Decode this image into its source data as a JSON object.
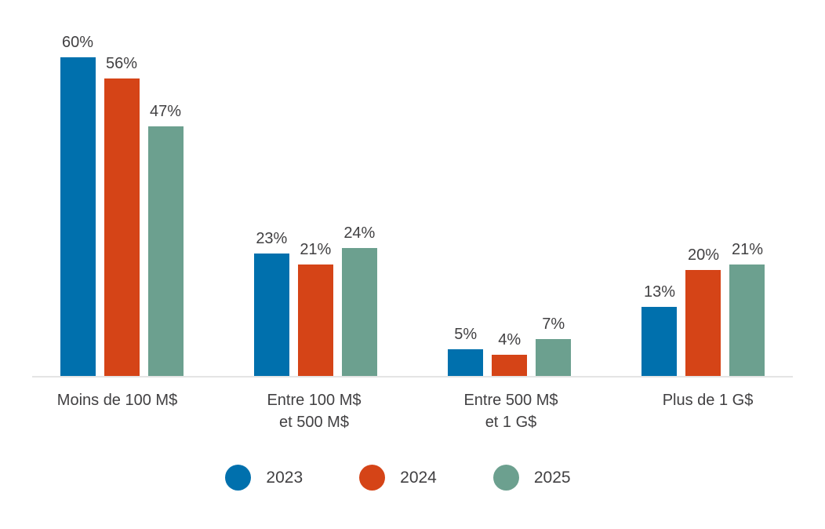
{
  "chart_data": {
    "type": "bar",
    "categories": [
      "Moins de 100 M$",
      "Entre 100 M$\net 500 M$",
      "Entre 500 M$\net 1 G$",
      "Plus de 1 G$"
    ],
    "series": [
      {
        "name": "2023",
        "color": "#0070AD",
        "values": [
          60,
          23,
          5,
          13
        ]
      },
      {
        "name": "2024",
        "color": "#D54417",
        "values": [
          56,
          21,
          4,
          20
        ]
      },
      {
        "name": "2025",
        "color": "#6CA08F",
        "values": [
          47,
          24,
          7,
          21
        ]
      }
    ],
    "value_suffix": "%",
    "title": "",
    "xlabel": "",
    "ylabel": "",
    "ylim": [
      0,
      71
    ],
    "grid": false,
    "data_labels": true,
    "label_color": "#414042",
    "axis_line_color": "#E4E4E4",
    "legend_position": "bottom-center",
    "legend_marker": "circle"
  }
}
